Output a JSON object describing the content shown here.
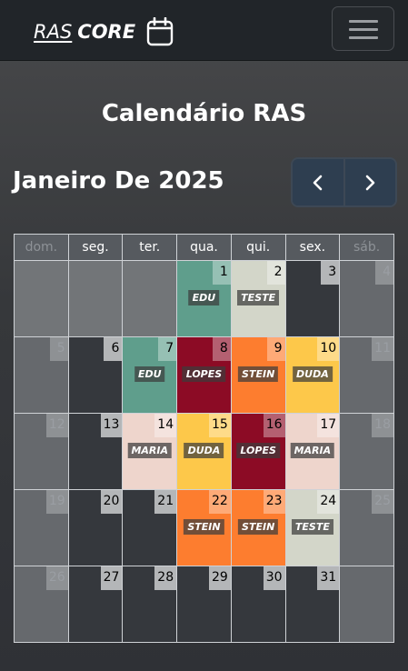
{
  "brand": {
    "part1": "RAS",
    "part2": "CORE"
  },
  "page": {
    "title": "Calendário RAS"
  },
  "calendar": {
    "month_title": "Janeiro De 2025",
    "weekdays": [
      "dom.",
      "seg.",
      "ter.",
      "qua.",
      "qui.",
      "sex.",
      "sáb."
    ],
    "weeks": [
      [
        {
          "day": "",
          "type": "other"
        },
        {
          "day": "",
          "type": "other"
        },
        {
          "day": "",
          "type": "other"
        },
        {
          "day": "1",
          "event": "EDU",
          "color": "#5f9e8c"
        },
        {
          "day": "2",
          "event": "TESTE",
          "color": "#d3d6c9"
        },
        {
          "day": "3"
        },
        {
          "day": "4",
          "type": "weekend"
        }
      ],
      [
        {
          "day": "5",
          "type": "weekend"
        },
        {
          "day": "6"
        },
        {
          "day": "7",
          "event": "EDU",
          "color": "#5f9e8c"
        },
        {
          "day": "8",
          "event": "LOPES",
          "color": "#8c0b25"
        },
        {
          "day": "9",
          "event": "STEIN",
          "color": "#fd7d2f"
        },
        {
          "day": "10",
          "event": "DUDA",
          "color": "#fdc84a"
        },
        {
          "day": "11",
          "type": "weekend"
        }
      ],
      [
        {
          "day": "12",
          "type": "weekend"
        },
        {
          "day": "13"
        },
        {
          "day": "14",
          "event": "MARIA",
          "color": "#eed5cc"
        },
        {
          "day": "15",
          "event": "DUDA",
          "color": "#fdc84a"
        },
        {
          "day": "16",
          "event": "LOPES",
          "color": "#8c0b25"
        },
        {
          "day": "17",
          "event": "MARIA",
          "color": "#eed5cc"
        },
        {
          "day": "18",
          "type": "weekend"
        }
      ],
      [
        {
          "day": "19",
          "type": "weekend"
        },
        {
          "day": "20"
        },
        {
          "day": "21"
        },
        {
          "day": "22",
          "event": "STEIN",
          "color": "#fd7d2f"
        },
        {
          "day": "23",
          "event": "STEIN",
          "color": "#fd7d2f"
        },
        {
          "day": "24",
          "event": "TESTE",
          "color": "#d3d6c9"
        },
        {
          "day": "25",
          "type": "weekend"
        }
      ],
      [
        {
          "day": "26",
          "type": "weekend"
        },
        {
          "day": "27"
        },
        {
          "day": "28"
        },
        {
          "day": "29"
        },
        {
          "day": "30"
        },
        {
          "day": "31"
        },
        {
          "day": "",
          "type": "weekend"
        }
      ]
    ]
  },
  "icons": {
    "brand": "calendar-icon",
    "menu": "hamburger-menu-icon",
    "prev": "chevron-left-icon",
    "next": "chevron-right-icon"
  }
}
